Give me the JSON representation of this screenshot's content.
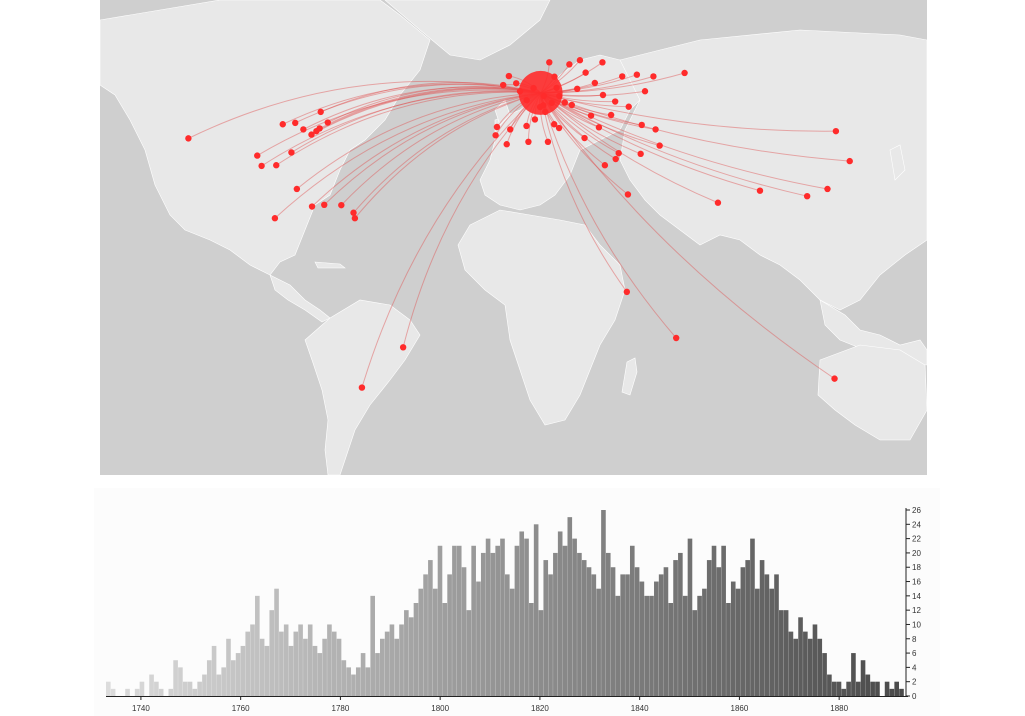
{
  "map": {
    "hub_city": "Central Europe origin",
    "colors": {
      "ocean": "#cfcfcf",
      "land": "#e8e8e8",
      "route": "#e05050",
      "point": "#ff2b2b"
    },
    "destinations": [
      {
        "lon": -122.4,
        "lat": 37.8
      },
      {
        "lon": -97,
        "lat": 32.8
      },
      {
        "lon": -95.4,
        "lat": 29.8
      },
      {
        "lon": -90,
        "lat": 30
      },
      {
        "lon": -87.6,
        "lat": 41.9
      },
      {
        "lon": -83,
        "lat": 42.3
      },
      {
        "lon": -80,
        "lat": 40.4
      },
      {
        "lon": -77,
        "lat": 38.9
      },
      {
        "lon": -75.2,
        "lat": 39.9
      },
      {
        "lon": -74,
        "lat": 40.7
      },
      {
        "lon": -71,
        "lat": 42.4
      },
      {
        "lon": -73.6,
        "lat": 45.5
      },
      {
        "lon": -84.4,
        "lat": 33.7
      },
      {
        "lon": -82.4,
        "lat": 23.1
      },
      {
        "lon": -76.8,
        "lat": 18
      },
      {
        "lon": -72.3,
        "lat": 18.5
      },
      {
        "lon": -66,
        "lat": 18.4
      },
      {
        "lon": -61.5,
        "lat": 16.2
      },
      {
        "lon": -61,
        "lat": 14.6
      },
      {
        "lon": -43.2,
        "lat": -22.9
      },
      {
        "lon": -58.4,
        "lat": -34.6
      },
      {
        "lon": -90.5,
        "lat": 14.6
      },
      {
        "lon": -9.1,
        "lat": 38.7
      },
      {
        "lon": -3.7,
        "lat": 40.4
      },
      {
        "lon": 2.3,
        "lat": 41.4
      },
      {
        "lon": 5.4,
        "lat": 43.3
      },
      {
        "lon": 12.5,
        "lat": 41.9
      },
      {
        "lon": 14.3,
        "lat": 40.8
      },
      {
        "lon": 23.7,
        "lat": 37.9
      },
      {
        "lon": 29,
        "lat": 41
      },
      {
        "lon": 31.2,
        "lat": 30
      },
      {
        "lon": 35.2,
        "lat": 31.8
      },
      {
        "lon": 36.3,
        "lat": 33.5
      },
      {
        "lon": 44.4,
        "lat": 33.3
      },
      {
        "lon": 39.7,
        "lat": 21.5
      },
      {
        "lon": 51.4,
        "lat": 35.7
      },
      {
        "lon": 39.3,
        "lat": -6.8
      },
      {
        "lon": 57.5,
        "lat": -20.2
      },
      {
        "lon": 72.9,
        "lat": 19.1
      },
      {
        "lon": 88.4,
        "lat": 22.6
      },
      {
        "lon": 105.8,
        "lat": 21
      },
      {
        "lon": 113.3,
        "lat": 23.1
      },
      {
        "lon": 116.4,
        "lat": 39.9
      },
      {
        "lon": 121.5,
        "lat": 31.2
      },
      {
        "lon": 115.9,
        "lat": -32
      },
      {
        "lon": 18.1,
        "lat": 59.3
      },
      {
        "lon": 30.3,
        "lat": 59.9
      },
      {
        "lon": 37.6,
        "lat": 55.8
      },
      {
        "lon": 24.1,
        "lat": 56.9
      },
      {
        "lon": 21,
        "lat": 52.2
      },
      {
        "lon": 30.5,
        "lat": 50.4
      },
      {
        "lon": 26.1,
        "lat": 44.4
      },
      {
        "lon": 19,
        "lat": 47.5
      },
      {
        "lon": 12.6,
        "lat": 55.7
      },
      {
        "lon": 10.7,
        "lat": 59.9
      },
      {
        "lon": -6.3,
        "lat": 53.3
      },
      {
        "lon": -0.1,
        "lat": 51.5
      },
      {
        "lon": 2.35,
        "lat": 48.9
      },
      {
        "lon": 4.9,
        "lat": 52.4
      },
      {
        "lon": 8.7,
        "lat": 50.1
      },
      {
        "lon": 13.4,
        "lat": 52.5
      },
      {
        "lon": 16.4,
        "lat": 48.2
      },
      {
        "lon": 14.4,
        "lat": 50.1
      },
      {
        "lon": 11.6,
        "lat": 48.1
      },
      {
        "lon": 8.5,
        "lat": 47.4
      },
      {
        "lon": 7.3,
        "lat": 46.9
      },
      {
        "lon": 49.9,
        "lat": 40.4
      },
      {
        "lon": 44.8,
        "lat": 41.7
      },
      {
        "lon": 40,
        "lat": 47
      },
      {
        "lon": 46,
        "lat": 51.5
      },
      {
        "lon": 33.5,
        "lat": 44.6
      },
      {
        "lon": 43,
        "lat": 56.3
      },
      {
        "lon": 49.1,
        "lat": 55.8
      },
      {
        "lon": 60.6,
        "lat": 56.8
      },
      {
        "lon": -4.2,
        "lat": 55.9
      },
      {
        "lon": -1.5,
        "lat": 53.8
      },
      {
        "lon": 3,
        "lat": 36.8
      },
      {
        "lon": 10.2,
        "lat": 36.8
      },
      {
        "lon": -5,
        "lat": 36.1
      },
      {
        "lon": 22,
        "lat": 60.5
      },
      {
        "lon": 27.5,
        "lat": 53.9
      },
      {
        "lon": 35,
        "lat": 48.5
      },
      {
        "lon": -8.6,
        "lat": 41.1
      },
      {
        "lon": 9.2,
        "lat": 45.5
      }
    ]
  },
  "histogram": {
    "colors": {
      "bar_light": "#dcdcdc",
      "bar_dark": "#4a4a4a"
    },
    "chart_data": {
      "type": "bar",
      "x_start": 1733,
      "x_end": 1893,
      "ylim": [
        0,
        26
      ],
      "y_ticks": [
        0,
        2,
        4,
        6,
        8,
        10,
        12,
        14,
        16,
        18,
        20,
        22,
        24,
        26
      ],
      "x_ticks": [
        1740,
        1760,
        1780,
        1800,
        1820,
        1840,
        1860,
        1880
      ],
      "values": [
        2,
        1,
        0,
        0,
        1,
        0,
        1,
        2,
        0,
        3,
        2,
        1,
        0,
        1,
        5,
        4,
        2,
        2,
        1,
        2,
        3,
        5,
        7,
        3,
        4,
        8,
        5,
        6,
        7,
        9,
        10,
        14,
        8,
        7,
        12,
        15,
        9,
        10,
        7,
        9,
        10,
        8,
        10,
        7,
        6,
        8,
        10,
        9,
        8,
        5,
        4,
        3,
        4,
        6,
        4,
        14,
        6,
        8,
        9,
        10,
        8,
        10,
        12,
        11,
        13,
        15,
        17,
        19,
        15,
        21,
        13,
        17,
        21,
        21,
        18,
        12,
        21,
        16,
        20,
        22,
        20,
        21,
        22,
        17,
        15,
        21,
        23,
        22,
        13,
        24,
        12,
        19,
        17,
        20,
        23,
        21,
        25,
        22,
        20,
        19,
        18,
        17,
        15,
        26,
        20,
        18,
        14,
        17,
        17,
        21,
        18,
        16,
        14,
        14,
        16,
        17,
        18,
        13,
        19,
        20,
        14,
        22,
        12,
        14,
        15,
        19,
        21,
        18,
        21,
        13,
        16,
        15,
        18,
        19,
        22,
        15,
        19,
        17,
        15,
        17,
        12,
        12,
        9,
        8,
        11,
        9,
        8,
        10,
        8,
        6,
        3,
        2,
        2,
        1,
        2,
        6,
        2,
        5,
        3,
        2,
        2,
        0,
        2,
        1,
        2,
        1
      ]
    }
  }
}
